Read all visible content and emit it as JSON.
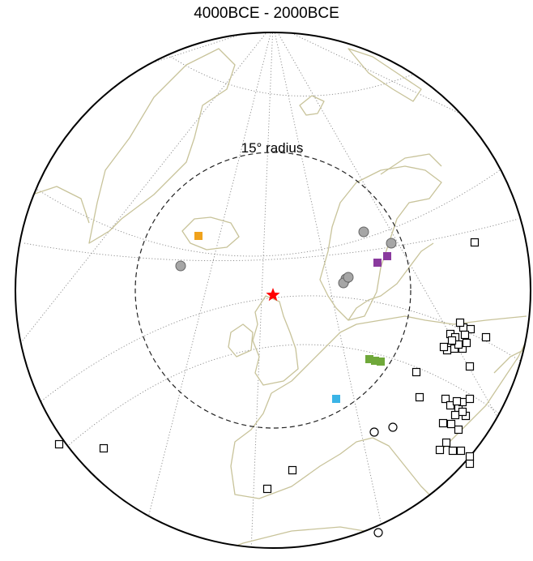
{
  "title": "4000BCE - 2000BCE",
  "radius_label": "15° radius",
  "colors": {
    "coastline": "#c8c39a",
    "graticule": "#888888",
    "star": "#ff0000",
    "iceland_site": "#f0a21c",
    "sweden_sites": "#8a3a9e",
    "green_sites": "#6fa83a",
    "blue_site": "#3ab4e6",
    "grey_sites": "#a6a6a6"
  },
  "markers": {
    "center": {
      "label": "center-star",
      "shape": "star",
      "color": "#ff0000"
    },
    "filled_squares": [
      {
        "region": "iceland",
        "color": "#f0a21c"
      },
      {
        "region": "sweden-a",
        "color": "#8a3a9e"
      },
      {
        "region": "sweden-b",
        "color": "#8a3a9e"
      },
      {
        "region": "central-europe-a",
        "color": "#6fa83a"
      },
      {
        "region": "central-europe-b",
        "color": "#6fa83a"
      },
      {
        "region": "central-europe-c",
        "color": "#6fa83a"
      },
      {
        "region": "france",
        "color": "#3ab4e6"
      }
    ],
    "grey_circles_count": 6,
    "open_squares_count": 40,
    "open_circles_count": 3
  }
}
